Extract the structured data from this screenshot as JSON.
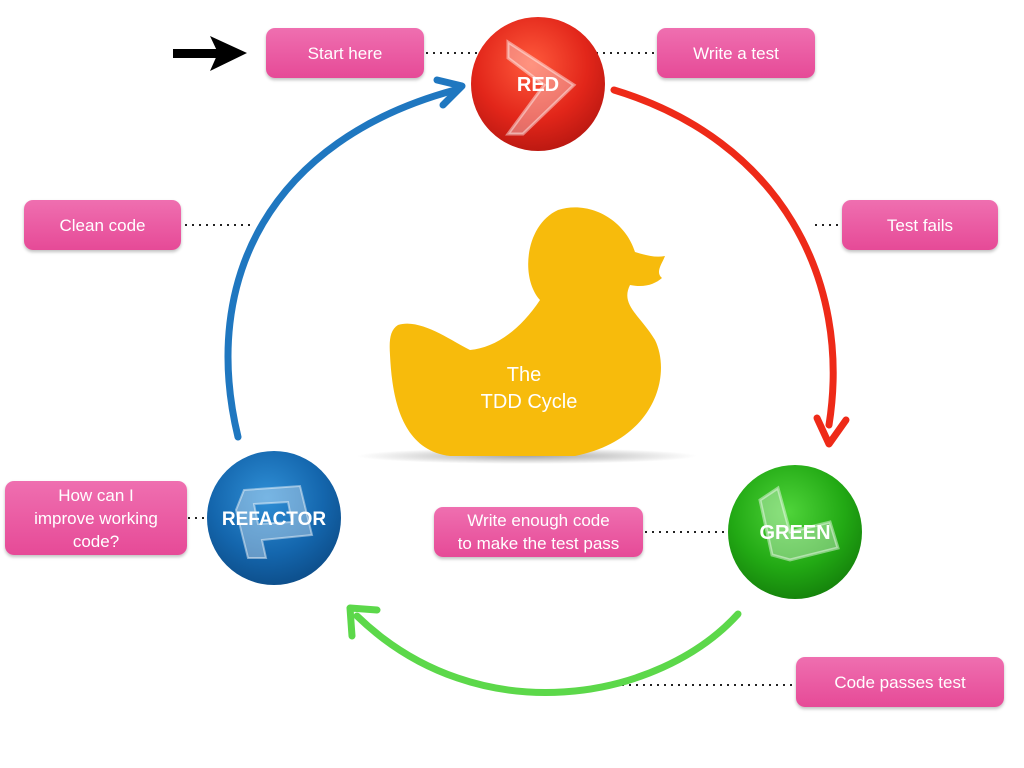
{
  "nodes": {
    "red": "RED",
    "green": "GREEN",
    "refactor": "REFACTOR"
  },
  "labels": {
    "start_here": "Start here",
    "write_a_test": "Write a test",
    "test_fails": "Test fails",
    "clean_code": "Clean code",
    "how_can_i_improve": "How can I\nimprove working\ncode?",
    "write_enough_code": "Write enough code\nto make the test pass",
    "code_passes_test": "Code passes test"
  },
  "center": {
    "line1": "The",
    "line2": "TDD Cycle"
  },
  "colors": {
    "red": "#e8281a",
    "green": "#2cb51a",
    "blue": "#1a74b8",
    "arrow_red": "#ee2a18",
    "arrow_green": "#5cd84a",
    "arrow_blue": "#1f77c0",
    "pill": "#e8519c",
    "duck": "#f7bb0c"
  },
  "icons": {
    "start_arrow": "right-arrow-icon",
    "red_glyph": "chevron-right-icon",
    "green_glyph": "l-shape-icon",
    "refactor_glyph": "r-shape-icon"
  }
}
